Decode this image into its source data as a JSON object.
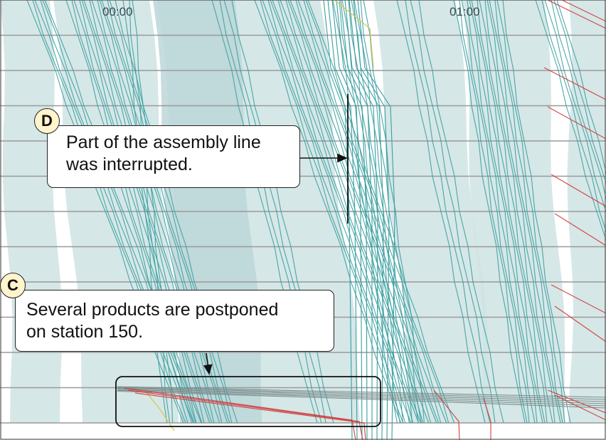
{
  "chart_data": {
    "type": "line",
    "subtype": "marey-timeline",
    "x_ticks": [
      "00:00",
      "01:00"
    ],
    "station_count": 12,
    "series_colors": {
      "normal_flow": "#3a9ea0",
      "delayed_flow": "#d23a3a",
      "highlight": "#d8c85a",
      "band": "#cfe3e3",
      "band_dark": "#bcd6d8",
      "station_line": "#9a9a9a"
    },
    "grid": true,
    "annotations": [
      {
        "badge": "D",
        "lines": [
          "Part of the assembly line",
          "was interrupted."
        ],
        "arrow_target": "interruption-marker"
      },
      {
        "badge": "C",
        "lines": [
          "Several products are postponed",
          "on station 150."
        ],
        "arrow_target": "postponed-products-box"
      }
    ]
  }
}
